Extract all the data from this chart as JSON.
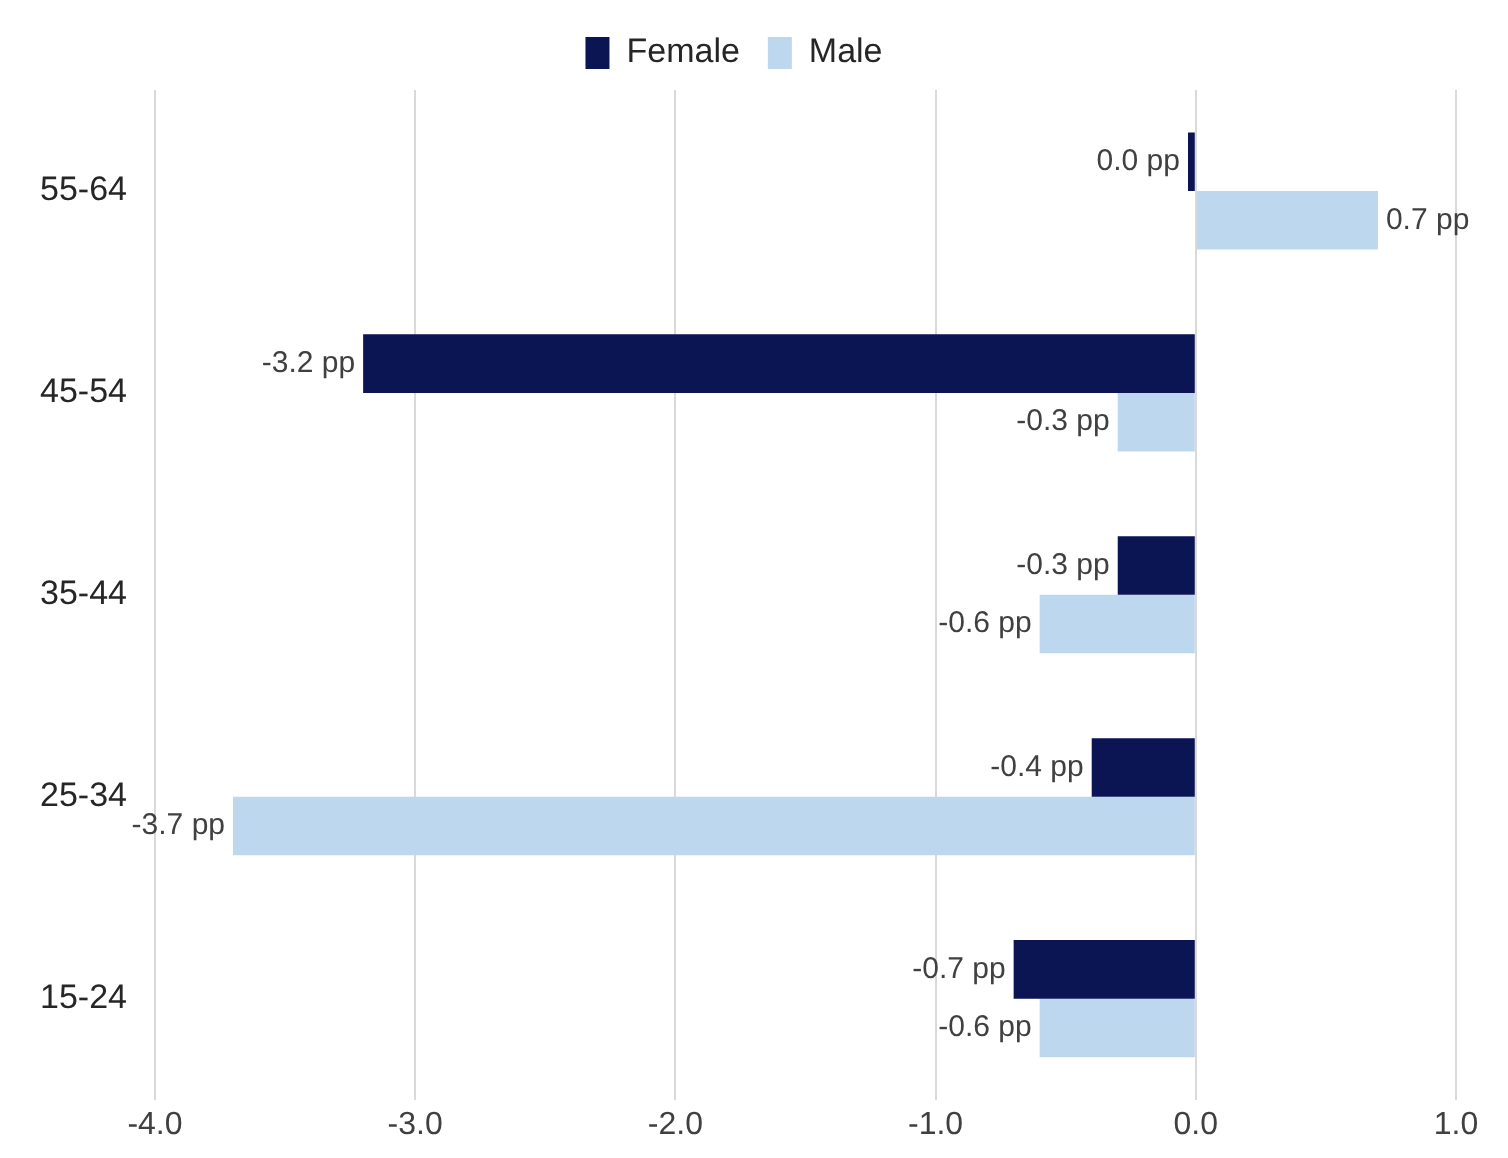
{
  "chart_data": {
    "type": "bar",
    "orientation": "horizontal",
    "categories": [
      "55-64",
      "45-54",
      "35-44",
      "25-34",
      "15-24"
    ],
    "series": [
      {
        "name": "Female",
        "color": "#0b1554",
        "values": [
          -0.03,
          -3.2,
          -0.3,
          -0.4,
          -0.7
        ],
        "value_labels": [
          "0.0 pp",
          "-3.2 pp",
          "-0.3 pp",
          "-0.4 pp",
          "-0.7 pp"
        ]
      },
      {
        "name": "Male",
        "color": "#bdd7ee",
        "values": [
          0.7,
          -0.3,
          -0.6,
          -3.7,
          -0.6
        ],
        "value_labels": [
          "0.7 pp",
          "-0.3 pp",
          "-0.6 pp",
          "-3.7 pp",
          "-0.6 pp"
        ]
      }
    ],
    "xlim": [
      -4.0,
      1.0
    ],
    "xticks": [
      {
        "value": -4,
        "label": "-4.0"
      },
      {
        "value": -3,
        "label": "-3.0"
      },
      {
        "value": -2,
        "label": "-2.0"
      },
      {
        "value": -1,
        "label": "-1.0"
      },
      {
        "value": 0,
        "label": "0.0"
      },
      {
        "value": 1,
        "label": "1.0"
      }
    ],
    "grid": "x",
    "legend": "top"
  }
}
